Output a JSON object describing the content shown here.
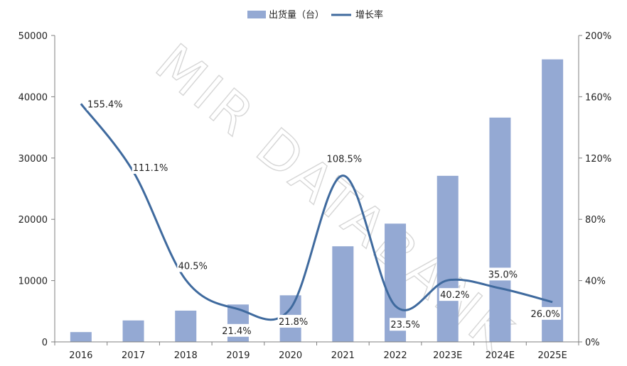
{
  "chart_data": {
    "type": "bar",
    "categories": [
      "2016",
      "2017",
      "2018",
      "2019",
      "2020",
      "2021",
      "2022",
      "2023E",
      "2024E",
      "2025E"
    ],
    "series": [
      {
        "name": "出货量（台）",
        "type": "bar",
        "axis": "left",
        "values": [
          1600,
          3500,
          5100,
          6100,
          7600,
          15600,
          19300,
          27100,
          36600,
          46100
        ]
      },
      {
        "name": "增长率",
        "type": "line",
        "axis": "right",
        "values": [
          155.4,
          111.1,
          40.5,
          21.4,
          21.8,
          108.5,
          23.5,
          40.2,
          35.0,
          26.0
        ],
        "labels": [
          "155.4%",
          "111.1%",
          "40.5%",
          "21.4%",
          "21.8%",
          "108.5%",
          "23.5%",
          "40.2%",
          "35.0%",
          "26.0%"
        ]
      }
    ],
    "left_axis": {
      "ylim": [
        0,
        50000
      ],
      "ticks": [
        "0",
        "10000",
        "20000",
        "30000",
        "40000",
        "50000"
      ]
    },
    "right_axis": {
      "ylim": [
        0,
        200
      ],
      "ticks": [
        "0%",
        "40%",
        "80%",
        "120%",
        "160%",
        "200%"
      ]
    },
    "legend": "top-center",
    "grid": false,
    "watermark": "MIR DATABANK",
    "colors": {
      "bar": "#94a9d3",
      "line": "#3f6a9e",
      "axis": "#7f7f7f"
    }
  }
}
